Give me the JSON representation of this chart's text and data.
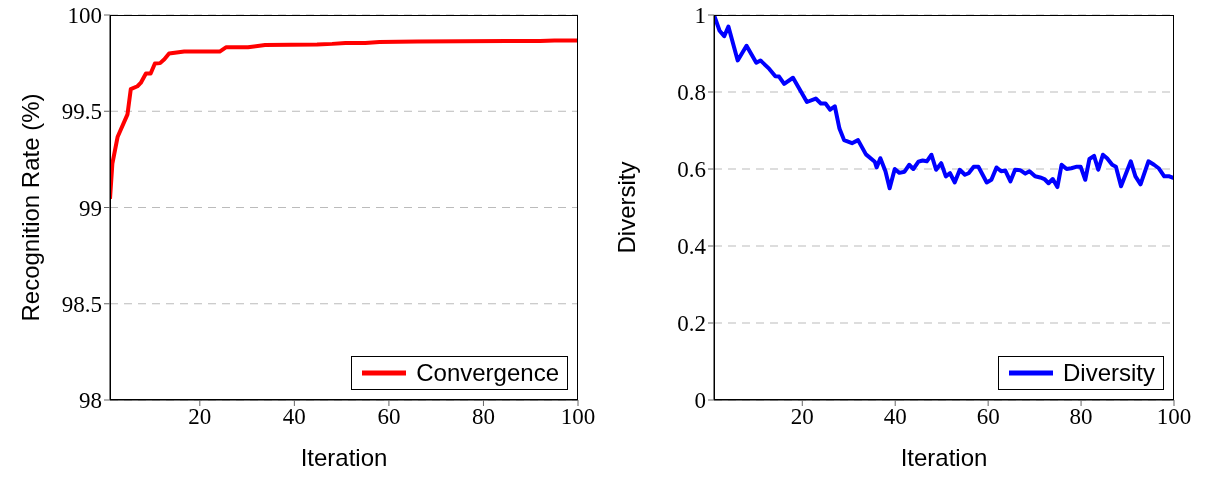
{
  "chart_data": [
    {
      "type": "line",
      "xlabel": "Iteration",
      "ylabel": "Recognition Rate (%)",
      "xlim": [
        1,
        100
      ],
      "xticks": [
        20,
        40,
        60,
        80,
        100
      ],
      "ylim": [
        98,
        100
      ],
      "yticks": [
        98,
        98.5,
        99,
        99.5,
        100
      ],
      "grid": "y",
      "legend": "bottom right",
      "line_style": "solid",
      "marker": "none",
      "series": [
        {
          "name": "Convergence",
          "color": "#ff0000",
          "x": [
            1,
            1.5,
            2.6,
            4.7,
            5.4,
            6.8,
            7.5,
            8.6,
            9.6,
            10.5,
            11.6,
            12.5,
            13.5,
            16.7,
            19.6,
            24.2,
            25.6,
            30.2,
            33.8,
            44.8,
            48,
            50.8,
            55,
            58,
            66,
            85,
            92,
            95,
            100
          ],
          "values": [
            99.045,
            99.228,
            99.366,
            99.484,
            99.615,
            99.63,
            99.647,
            99.696,
            99.696,
            99.748,
            99.75,
            99.77,
            99.8,
            99.81,
            99.81,
            99.81,
            99.833,
            99.833,
            99.844,
            99.847,
            99.85,
            99.855,
            99.855,
            99.86,
            99.862,
            99.865,
            99.865,
            99.868,
            99.868
          ]
        }
      ]
    },
    {
      "type": "line",
      "xlabel": "Iteration",
      "ylabel": "Diversity",
      "xlim": [
        1,
        100
      ],
      "xticks": [
        20,
        40,
        60,
        80,
        100
      ],
      "ylim": [
        0,
        1
      ],
      "yticks": [
        0,
        0.2,
        0.4,
        0.6,
        0.8,
        1
      ],
      "grid": "y",
      "legend": "bottom right",
      "line_style": "solid",
      "marker": "none",
      "series": [
        {
          "name": "Diversity",
          "color": "#0000ff",
          "x": [
            1,
            2.2,
            3.2,
            4.1,
            6.1,
            8,
            10.1,
            11,
            12.9,
            14.2,
            15,
            16.1,
            18,
            21,
            22.9,
            24,
            25,
            26,
            27,
            28,
            29,
            30.7,
            32,
            33.7,
            35.6,
            36,
            36.8,
            37.9,
            38.8,
            39.9,
            40.9,
            42,
            43,
            43.9,
            45,
            45.9,
            46.8,
            47.8,
            48.8,
            49.9,
            50.9,
            51.8,
            52.8,
            53.9,
            55,
            55.8,
            56.9,
            57.9,
            59.7,
            60.7,
            61.8,
            62.8,
            63.7,
            64.8,
            65.8,
            66.9,
            68,
            68.9,
            70.1,
            71.2,
            72.1,
            73,
            73.9,
            74.9,
            75.8,
            76.9,
            77.9,
            79.1,
            79.9,
            80.9,
            81.8,
            82.8,
            83.7,
            84.7,
            85.6,
            86.7,
            87.5,
            88.6,
            90.7,
            91.7,
            92.8,
            94.5,
            95.7,
            96.7,
            97.9,
            99,
            100
          ],
          "values": [
            1,
            0.959,
            0.945,
            0.97,
            0.882,
            0.92,
            0.876,
            0.882,
            0.86,
            0.841,
            0.84,
            0.821,
            0.837,
            0.774,
            0.783,
            0.77,
            0.77,
            0.754,
            0.763,
            0.705,
            0.675,
            0.667,
            0.675,
            0.638,
            0.619,
            0.604,
            0.628,
            0.594,
            0.55,
            0.6,
            0.59,
            0.593,
            0.611,
            0.6,
            0.619,
            0.622,
            0.62,
            0.637,
            0.598,
            0.615,
            0.581,
            0.589,
            0.565,
            0.598,
            0.585,
            0.589,
            0.606,
            0.606,
            0.565,
            0.572,
            0.604,
            0.594,
            0.596,
            0.568,
            0.598,
            0.597,
            0.588,
            0.594,
            0.581,
            0.578,
            0.574,
            0.563,
            0.574,
            0.553,
            0.611,
            0.6,
            0.602,
            0.606,
            0.606,
            0.572,
            0.626,
            0.634,
            0.598,
            0.637,
            0.628,
            0.611,
            0.606,
            0.555,
            0.62,
            0.581,
            0.56,
            0.62,
            0.611,
            0.602,
            0.581,
            0.581,
            0.576
          ]
        }
      ]
    }
  ]
}
